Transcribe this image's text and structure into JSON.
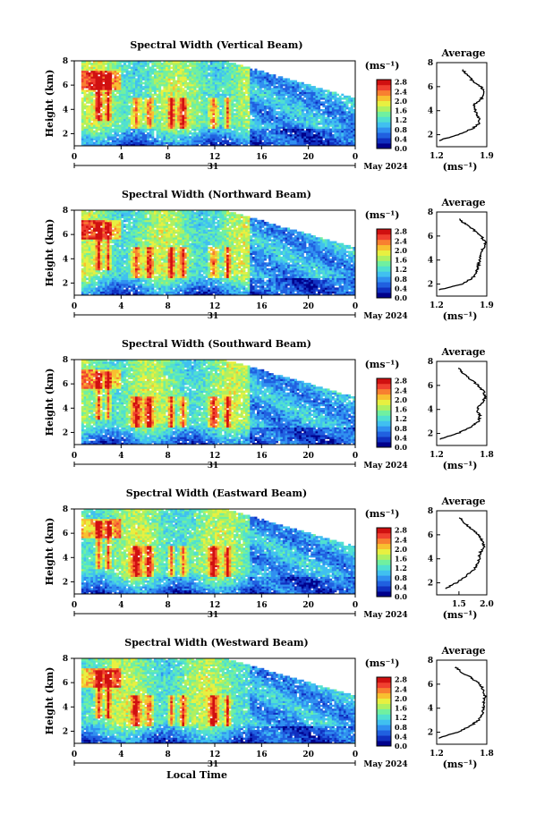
{
  "page": {
    "date_label": "May 2024",
    "day_label": "31",
    "xlabel": "Local Time",
    "ylabel": "Height (km)",
    "avg_title": "Average",
    "cb_unit": "(ms⁻¹)",
    "avg_unit": "(ms⁻¹)"
  },
  "colors": [
    "#00008b",
    "#1030c0",
    "#2060e0",
    "#3090f0",
    "#40c0f0",
    "#50e0d0",
    "#70f0a0",
    "#b0f060",
    "#e8f040",
    "#f8c030",
    "#f88030",
    "#f04030",
    "#d01010"
  ],
  "chart_data": [
    {
      "type": "heatmap",
      "title": "Spectral Width (Vertical Beam)",
      "xlabel": "Local Time",
      "ylabel": "Height (km)",
      "x_ticks": [
        "0",
        "4",
        "8",
        "12",
        "16",
        "20",
        "0"
      ],
      "y_ticks": [
        "2",
        "4",
        "6",
        "8"
      ],
      "xlim": [
        0,
        24
      ],
      "ylim": [
        1,
        8
      ],
      "colorbar_unit": "(ms⁻¹)",
      "colorbar_ticks": [
        "0.0",
        "0.4",
        "0.8",
        "1.2",
        "1.6",
        "2.0",
        "2.4",
        "2.8"
      ],
      "clim": [
        0,
        2.9
      ],
      "profile": {
        "title": "Average",
        "xlabel": "(ms⁻¹)",
        "x_ticks": [
          "1.2",
          "1.9"
        ],
        "xlim": [
          1.2,
          1.9
        ],
        "heights": [
          1.5,
          2.0,
          2.5,
          3.0,
          3.5,
          4.0,
          4.5,
          5.0,
          5.5,
          6.0,
          6.5,
          7.0,
          7.5
        ],
        "values": [
          1.22,
          1.5,
          1.7,
          1.8,
          1.78,
          1.74,
          1.72,
          1.83,
          1.86,
          1.82,
          1.7,
          1.62,
          1.55
        ]
      }
    },
    {
      "type": "heatmap",
      "title": "Spectral Width (Northward Beam)",
      "xlabel": "Local Time",
      "ylabel": "Height (km)",
      "x_ticks": [
        "0",
        "4",
        "8",
        "12",
        "16",
        "20",
        "0"
      ],
      "y_ticks": [
        "2",
        "4",
        "6",
        "8"
      ],
      "xlim": [
        0,
        24
      ],
      "ylim": [
        1,
        8
      ],
      "colorbar_unit": "(ms⁻¹)",
      "colorbar_ticks": [
        "0.0",
        "0.4",
        "0.8",
        "1.2",
        "1.6",
        "2.0",
        "2.4",
        "2.8"
      ],
      "clim": [
        0,
        2.9
      ],
      "profile": {
        "title": "Average",
        "xlabel": "(ms⁻¹)",
        "x_ticks": [
          "1.2",
          "1.9"
        ],
        "xlim": [
          1.2,
          1.9
        ],
        "heights": [
          1.5,
          2.0,
          2.5,
          3.0,
          3.5,
          4.0,
          4.5,
          5.0,
          5.5,
          6.0,
          6.5,
          7.0,
          7.5
        ],
        "values": [
          1.22,
          1.55,
          1.7,
          1.76,
          1.78,
          1.8,
          1.8,
          1.86,
          1.88,
          1.82,
          1.72,
          1.6,
          1.5
        ]
      }
    },
    {
      "type": "heatmap",
      "title": "Spectral Width (Southward Beam)",
      "xlabel": "Local Time",
      "ylabel": "Height (km)",
      "x_ticks": [
        "0",
        "4",
        "8",
        "12",
        "16",
        "20",
        "0"
      ],
      "y_ticks": [
        "2",
        "4",
        "6",
        "8"
      ],
      "xlim": [
        0,
        24
      ],
      "ylim": [
        1,
        8
      ],
      "colorbar_unit": "(ms⁻¹)",
      "colorbar_ticks": [
        "0.0",
        "0.4",
        "0.8",
        "1.2",
        "1.6",
        "2.0",
        "2.4",
        "2.8"
      ],
      "clim": [
        0,
        2.9
      ],
      "profile": {
        "title": "Average",
        "xlabel": "(ms⁻¹)",
        "x_ticks": [
          "1.2",
          "1.8"
        ],
        "xlim": [
          1.2,
          1.8
        ],
        "heights": [
          1.5,
          2.0,
          2.5,
          3.0,
          3.5,
          4.0,
          4.5,
          5.0,
          5.5,
          6.0,
          6.5,
          7.0,
          7.5
        ],
        "values": [
          1.23,
          1.45,
          1.6,
          1.7,
          1.72,
          1.68,
          1.74,
          1.78,
          1.76,
          1.7,
          1.6,
          1.52,
          1.45
        ]
      }
    },
    {
      "type": "heatmap",
      "title": "Spectral Width (Eastward Beam)",
      "xlabel": "Local Time",
      "ylabel": "Height (km)",
      "x_ticks": [
        "0",
        "4",
        "8",
        "12",
        "16",
        "20",
        "0"
      ],
      "y_ticks": [
        "2",
        "4",
        "6",
        "8"
      ],
      "xlim": [
        0,
        24
      ],
      "ylim": [
        1,
        8
      ],
      "colorbar_unit": "(ms⁻¹)",
      "colorbar_ticks": [
        "0.0",
        "0.4",
        "0.8",
        "1.2",
        "1.6",
        "2.0",
        "2.4",
        "2.8"
      ],
      "clim": [
        0,
        2.9
      ],
      "profile": {
        "title": "Average",
        "xlabel": "(ms⁻¹)",
        "x_ticks": [
          "1.5",
          "2.0"
        ],
        "xlim": [
          1.1,
          2.0
        ],
        "heights": [
          1.5,
          2.0,
          2.5,
          3.0,
          3.5,
          4.0,
          4.5,
          5.0,
          5.5,
          6.0,
          6.5,
          7.0,
          7.5
        ],
        "values": [
          1.25,
          1.45,
          1.6,
          1.75,
          1.82,
          1.86,
          1.88,
          1.95,
          1.92,
          1.85,
          1.72,
          1.6,
          1.5
        ]
      }
    },
    {
      "type": "heatmap",
      "title": "Spectral Width (Westward Beam)",
      "xlabel": "Local Time",
      "ylabel": "Height (km)",
      "x_ticks": [
        "0",
        "4",
        "8",
        "12",
        "16",
        "20",
        "0"
      ],
      "y_ticks": [
        "2",
        "4",
        "6",
        "8"
      ],
      "xlim": [
        0,
        24
      ],
      "ylim": [
        1,
        8
      ],
      "colorbar_unit": "(ms⁻¹)",
      "colorbar_ticks": [
        "0.0",
        "0.4",
        "0.8",
        "1.2",
        "1.6",
        "2.0",
        "2.4",
        "2.8"
      ],
      "clim": [
        0,
        2.9
      ],
      "profile": {
        "title": "Average",
        "xlabel": "(ms⁻¹)",
        "x_ticks": [
          "1.2",
          "1.8"
        ],
        "xlim": [
          1.2,
          1.8
        ],
        "heights": [
          1.5,
          2.0,
          2.5,
          3.0,
          3.5,
          4.0,
          4.5,
          5.0,
          5.5,
          6.0,
          6.5,
          7.0,
          7.5
        ],
        "values": [
          1.22,
          1.45,
          1.6,
          1.7,
          1.74,
          1.76,
          1.76,
          1.78,
          1.76,
          1.72,
          1.62,
          1.5,
          1.42
        ]
      }
    }
  ]
}
